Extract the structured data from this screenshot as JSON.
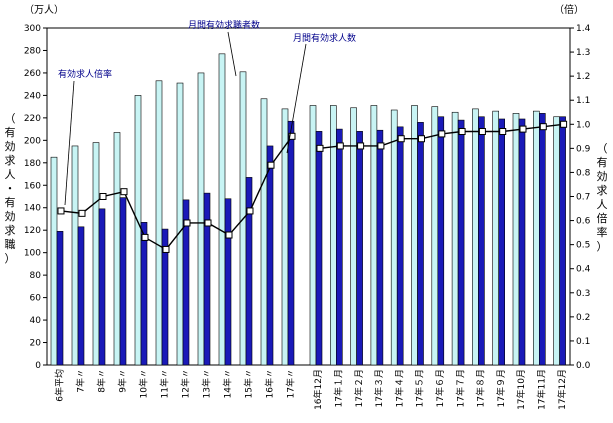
{
  "chart_data": {
    "type": "bar",
    "left_unit": "（万人）",
    "right_unit": "（倍）",
    "ylabel_left": "（有効求人・有効求職）",
    "ylabel_right": "（有効求人倍率）",
    "ylim_left": [
      0,
      300
    ],
    "ylim_right": [
      0.0,
      1.4
    ],
    "left_ticks": [
      "0",
      "20",
      "40",
      "60",
      "80",
      "100",
      "120",
      "140",
      "160",
      "180",
      "200",
      "220",
      "240",
      "260",
      "280",
      "300"
    ],
    "right_ticks": [
      "0.0",
      "0.1",
      "0.2",
      "0.3",
      "0.4",
      "0.5",
      "0.6",
      "0.7",
      "0.8",
      "0.9",
      "1.0",
      "1.1",
      "1.2",
      "1.3",
      "1.4"
    ],
    "categories_annual": [
      "6年平均",
      "7年〃",
      "8年〃",
      "9年〃",
      "10年〃",
      "11年〃",
      "12年〃",
      "13年〃",
      "14年〃",
      "15年〃",
      "16年〃",
      "17年〃"
    ],
    "categories_monthly": [
      "16年12月",
      "17年１月",
      "17年２月",
      "17年３月",
      "17年４月",
      "17年５月",
      "17年６月",
      "17年７月",
      "17年８月",
      "17年９月",
      "17年10月",
      "17年11月",
      "17年12月"
    ],
    "series": [
      {
        "name": "月間有効求職者数",
        "color": "#c8f4f4",
        "annual": [
          185,
          195,
          198,
          207,
          240,
          253,
          251,
          260,
          277,
          261,
          237,
          228
        ],
        "monthly": [
          231,
          231,
          229,
          231,
          227,
          231,
          230,
          225,
          228,
          226,
          224,
          226,
          221
        ]
      },
      {
        "name": "月間有効求人数",
        "color": "#1a1ab8",
        "annual": [
          119,
          123,
          139,
          149,
          127,
          121,
          147,
          153,
          148,
          167,
          195,
          217
        ],
        "monthly": [
          208,
          210,
          208,
          209,
          212,
          216,
          221,
          218,
          221,
          219,
          219,
          224,
          221
        ]
      }
    ],
    "ratio_line": {
      "name": "有効求人倍率",
      "annual": [
        0.64,
        0.63,
        0.7,
        0.72,
        0.53,
        0.48,
        0.59,
        0.59,
        0.54,
        0.64,
        0.83,
        0.95
      ],
      "monthly": [
        0.9,
        0.91,
        0.91,
        0.91,
        0.94,
        0.94,
        0.96,
        0.97,
        0.97,
        0.97,
        0.98,
        0.99,
        1.0
      ]
    },
    "annotations": {
      "ratio": "有効求人倍率",
      "jobseekers": "月間有効求職者数",
      "openings": "月間有効求人数"
    }
  }
}
